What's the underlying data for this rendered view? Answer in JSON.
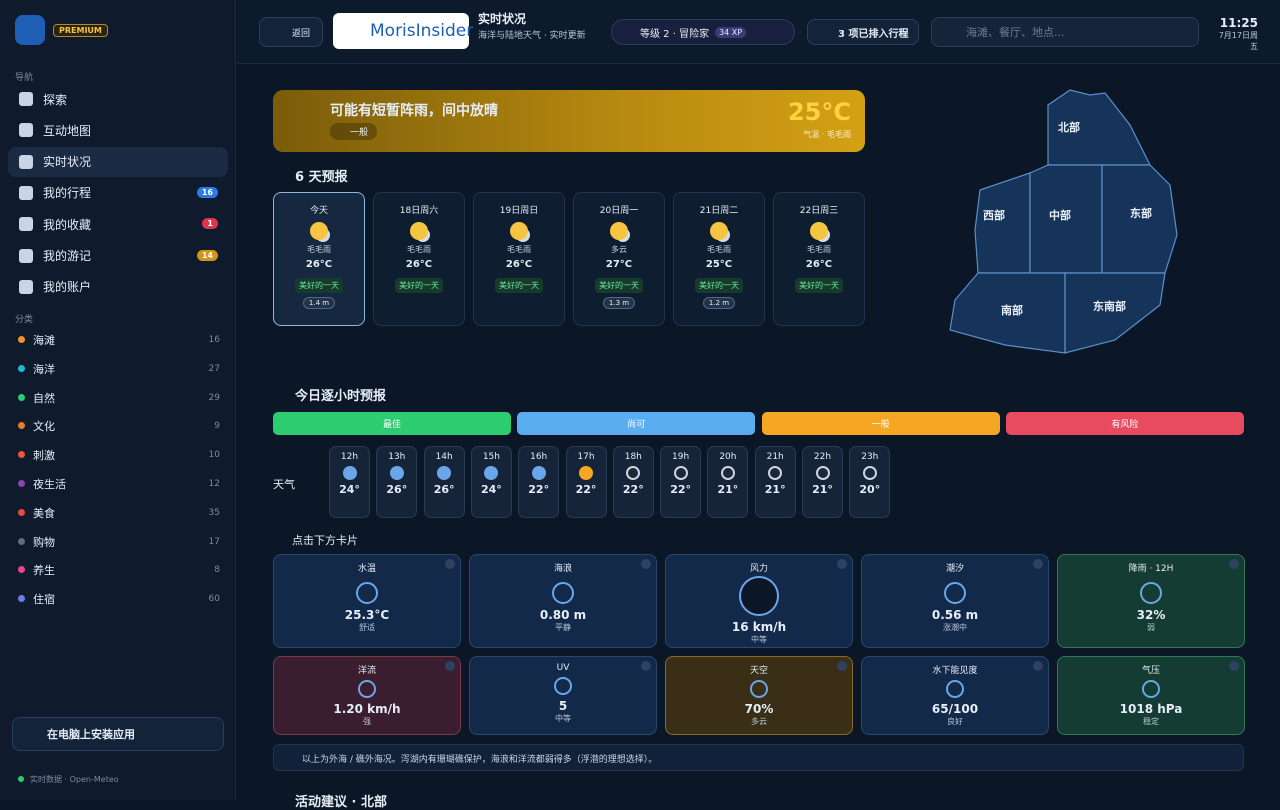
{
  "sidebar": {
    "badge": "PREMIUM",
    "nav_label": "导航",
    "nav": [
      {
        "label": "探索"
      },
      {
        "label": "互动地图"
      },
      {
        "label": "实时状况"
      },
      {
        "label": "我的行程",
        "badge": "16"
      },
      {
        "label": "我的收藏",
        "badge": "1"
      },
      {
        "label": "我的游记",
        "badge": "14"
      },
      {
        "label": "我的账户"
      }
    ],
    "category_label": "分类",
    "categories": [
      {
        "label": "海滩",
        "count": "16"
      },
      {
        "label": "海洋",
        "count": "27"
      },
      {
        "label": "自然",
        "count": "29"
      },
      {
        "label": "文化",
        "count": "9"
      },
      {
        "label": "刺激",
        "count": "10"
      },
      {
        "label": "夜生活",
        "count": "12"
      },
      {
        "label": "美食",
        "count": "35"
      },
      {
        "label": "购物",
        "count": "17"
      },
      {
        "label": "养生",
        "count": "8"
      },
      {
        "label": "住宿",
        "count": "60"
      }
    ],
    "install": "在电脑上安装应用",
    "footer": "实时数据 · Open-Meteo"
  },
  "header": {
    "back": "返回",
    "brand": "MorisInsider",
    "title": "实时状况",
    "subtitle": "海洋与陆地天气 · 实时更新",
    "level": "等级 2 · 冒险家",
    "xp": "34 XP",
    "trips": "3 项已排入行程",
    "search": "海滩、餐厅、地点...",
    "time": "11:25",
    "date": "7月17日周五"
  },
  "banner": {
    "title": "可能有短暂阵雨，间中放晴",
    "tag": "一般",
    "temp": "25°C",
    "note": "气温 · 毛毛雨"
  },
  "forecast": {
    "title": "6 天预报",
    "days": [
      {
        "day": "今天",
        "cond": "毛毛雨",
        "temp": "26°C",
        "tag": "美好的一天",
        "wave": "1.4 m"
      },
      {
        "day": "18日周六",
        "cond": "毛毛雨",
        "temp": "26°C",
        "tag": "美好的一天"
      },
      {
        "day": "19日周日",
        "cond": "毛毛雨",
        "temp": "26°C",
        "tag": "美好的一天"
      },
      {
        "day": "20日周一",
        "cond": "多云",
        "temp": "27°C",
        "tag": "美好的一天",
        "wave": "1.3 m"
      },
      {
        "day": "21日周二",
        "cond": "毛毛雨",
        "temp": "25°C",
        "tag": "美好的一天",
        "wave": "1.2 m"
      },
      {
        "day": "22日周三",
        "cond": "毛毛雨",
        "temp": "26°C",
        "tag": "美好的一天"
      }
    ]
  },
  "map": {
    "regions": [
      "北部",
      "西部",
      "中部",
      "东部",
      "南部",
      "东南部"
    ]
  },
  "hourly": {
    "title": "今日逐小时预报",
    "legend": [
      "最佳",
      "尚可",
      "一般",
      "有风险"
    ],
    "row_label": "天气",
    "hours": [
      {
        "hour": "12h",
        "temp": "24°"
      },
      {
        "hour": "13h",
        "temp": "26°"
      },
      {
        "hour": "14h",
        "temp": "26°"
      },
      {
        "hour": "15h",
        "temp": "24°"
      },
      {
        "hour": "16h",
        "temp": "22°"
      },
      {
        "hour": "17h",
        "temp": "22°"
      },
      {
        "hour": "18h",
        "temp": "22°"
      },
      {
        "hour": "19h",
        "temp": "22°"
      },
      {
        "hour": "20h",
        "temp": "21°"
      },
      {
        "hour": "21h",
        "temp": "21°"
      },
      {
        "hour": "22h",
        "temp": "21°"
      },
      {
        "hour": "23h",
        "temp": "20°"
      }
    ]
  },
  "cards_hint": "点击下方卡片",
  "cards": [
    {
      "label": "水温",
      "value": "25.3°C",
      "sub": "舒适"
    },
    {
      "label": "海浪",
      "value": "0.80 m",
      "sub": "平静"
    },
    {
      "label": "风力",
      "value": "16 km/h",
      "sub": "中等"
    },
    {
      "label": "潮汐",
      "value": "0.56 m",
      "sub": "涨潮中"
    },
    {
      "label": "降雨 · 12H",
      "value": "32%",
      "sub": "弱"
    },
    {
      "label": "洋流",
      "value": "1.20 km/h",
      "sub": "强"
    },
    {
      "label": "UV",
      "value": "5",
      "sub": "中等"
    },
    {
      "label": "天空",
      "value": "70%",
      "sub": "多云"
    },
    {
      "label": "水下能见度",
      "value": "65/100",
      "sub": "良好"
    },
    {
      "label": "气压",
      "value": "1018 hPa",
      "sub": "稳定"
    }
  ],
  "note": "以上为外海 / 礁外海况。泻湖内有珊瑚礁保护，海浪和洋流都弱得多（浮潜的理想选择）。",
  "activity_title": "活动建议 · 北部"
}
